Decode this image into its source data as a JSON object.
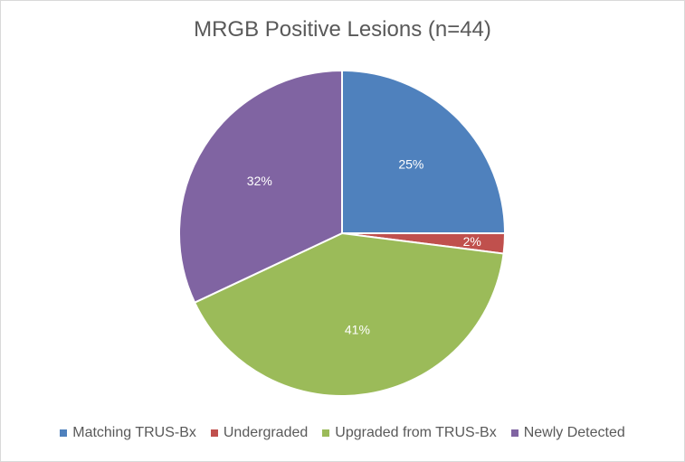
{
  "chart_data": {
    "type": "pie",
    "title": "MRGB Positive Lesions (n=44)",
    "categories": [
      "Matching TRUS-Bx",
      "Undergraded",
      "Upgraded from TRUS-Bx",
      "Newly Detected"
    ],
    "values": [
      25,
      2,
      41,
      32
    ],
    "labels": [
      "25%",
      "2%",
      "41%",
      "32%"
    ],
    "colors": [
      "#4f81bd",
      "#c0504d",
      "#9bbb59",
      "#8064a2"
    ],
    "legend_position": "bottom"
  }
}
